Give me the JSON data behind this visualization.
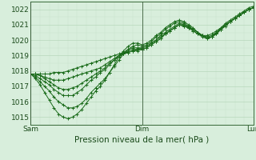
{
  "xlabel": "Pression niveau de la mer( hPa )",
  "ylim": [
    1014.5,
    1022.5
  ],
  "xlim": [
    0,
    48
  ],
  "xtick_positions": [
    0,
    24,
    48
  ],
  "xtick_labels": [
    "Sam",
    "Dim",
    "Lun"
  ],
  "ytick_positions": [
    1015,
    1016,
    1017,
    1018,
    1019,
    1020,
    1021,
    1022
  ],
  "bg_color": "#d8eedc",
  "grid_major_color": "#b8d8bc",
  "grid_minor_color": "#c8e4cc",
  "line_color": "#1a6b1a",
  "series": [
    [
      1017.8,
      1017.8,
      1017.8,
      1017.8,
      1017.8,
      1017.9,
      1017.9,
      1017.9,
      1018.0,
      1018.1,
      1018.2,
      1018.3,
      1018.4,
      1018.5,
      1018.6,
      1018.7,
      1018.8,
      1018.9,
      1019.0,
      1019.1,
      1019.2,
      1019.2,
      1019.3,
      1019.4,
      1019.5,
      1019.6,
      1019.8,
      1020.0,
      1020.2,
      1020.4,
      1020.6,
      1020.8,
      1021.0,
      1020.9,
      1020.8,
      1020.6,
      1020.4,
      1020.3,
      1020.3,
      1020.4,
      1020.6,
      1020.8,
      1021.1,
      1021.3,
      1021.5,
      1021.7,
      1021.9,
      1022.1,
      1022.2
    ],
    [
      1017.8,
      1017.8,
      1017.7,
      1017.6,
      1017.5,
      1017.4,
      1017.4,
      1017.4,
      1017.5,
      1017.6,
      1017.7,
      1017.8,
      1017.9,
      1018.0,
      1018.1,
      1018.2,
      1018.4,
      1018.6,
      1018.8,
      1019.0,
      1019.1,
      1019.2,
      1019.3,
      1019.3,
      1019.4,
      1019.5,
      1019.7,
      1019.9,
      1020.1,
      1020.4,
      1020.6,
      1020.8,
      1021.0,
      1020.9,
      1020.8,
      1020.7,
      1020.5,
      1020.3,
      1020.2,
      1020.3,
      1020.5,
      1020.8,
      1021.0,
      1021.2,
      1021.4,
      1021.6,
      1021.8,
      1022.0,
      1022.1
    ],
    [
      1017.8,
      1017.8,
      1017.7,
      1017.5,
      1017.3,
      1017.1,
      1016.9,
      1016.8,
      1016.8,
      1016.9,
      1017.0,
      1017.2,
      1017.4,
      1017.6,
      1017.8,
      1018.0,
      1018.2,
      1018.5,
      1018.7,
      1018.9,
      1019.1,
      1019.3,
      1019.4,
      1019.4,
      1019.4,
      1019.5,
      1019.7,
      1019.9,
      1020.1,
      1020.4,
      1020.6,
      1020.8,
      1021.0,
      1021.0,
      1020.8,
      1020.6,
      1020.4,
      1020.2,
      1020.1,
      1020.2,
      1020.5,
      1020.7,
      1021.0,
      1021.2,
      1021.4,
      1021.6,
      1021.8,
      1022.0,
      1022.1
    ],
    [
      1017.8,
      1017.7,
      1017.5,
      1017.3,
      1017.1,
      1016.8,
      1016.6,
      1016.4,
      1016.4,
      1016.4,
      1016.6,
      1016.8,
      1017.1,
      1017.4,
      1017.6,
      1017.9,
      1018.1,
      1018.4,
      1018.7,
      1019.0,
      1019.2,
      1019.4,
      1019.5,
      1019.5,
      1019.5,
      1019.6,
      1019.8,
      1020.0,
      1020.3,
      1020.5,
      1020.7,
      1020.9,
      1021.1,
      1021.0,
      1020.9,
      1020.7,
      1020.5,
      1020.3,
      1020.2,
      1020.2,
      1020.5,
      1020.7,
      1021.0,
      1021.2,
      1021.4,
      1021.6,
      1021.8,
      1022.0,
      1022.1
    ],
    [
      1017.8,
      1017.6,
      1017.3,
      1017.0,
      1016.7,
      1016.3,
      1016.0,
      1015.8,
      1015.6,
      1015.6,
      1015.7,
      1015.9,
      1016.2,
      1016.6,
      1016.9,
      1017.2,
      1017.5,
      1017.9,
      1018.3,
      1018.7,
      1019.1,
      1019.4,
      1019.6,
      1019.7,
      1019.6,
      1019.7,
      1019.9,
      1020.2,
      1020.4,
      1020.7,
      1020.9,
      1021.1,
      1021.2,
      1021.1,
      1020.9,
      1020.7,
      1020.5,
      1020.3,
      1020.1,
      1020.2,
      1020.4,
      1020.7,
      1020.9,
      1021.2,
      1021.4,
      1021.6,
      1021.8,
      1022.0,
      1022.1
    ],
    [
      1017.8,
      1017.5,
      1017.1,
      1016.6,
      1016.1,
      1015.6,
      1015.2,
      1015.0,
      1014.9,
      1015.0,
      1015.2,
      1015.5,
      1015.9,
      1016.3,
      1016.7,
      1017.0,
      1017.4,
      1017.9,
      1018.4,
      1018.9,
      1019.3,
      1019.6,
      1019.8,
      1019.8,
      1019.7,
      1019.8,
      1020.0,
      1020.3,
      1020.5,
      1020.8,
      1021.0,
      1021.2,
      1021.3,
      1021.2,
      1021.0,
      1020.8,
      1020.5,
      1020.3,
      1020.2,
      1020.2,
      1020.4,
      1020.7,
      1021.0,
      1021.2,
      1021.4,
      1021.6,
      1021.8,
      1022.0,
      1022.1
    ]
  ]
}
